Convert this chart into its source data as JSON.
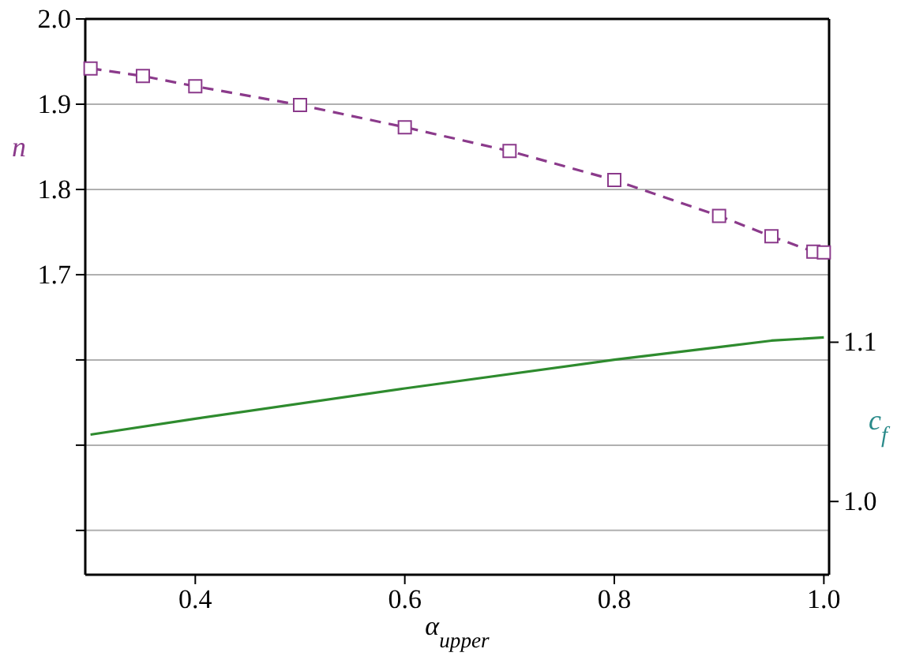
{
  "chart_data": {
    "type": "line",
    "xlabel": "α$_{upper}$",
    "ylabel": "n",
    "y2label": "c$_{f}$",
    "xlim": [
      0.295,
      1.005
    ],
    "xticks": [
      0.4,
      0.6,
      0.8,
      {
        "value": 1,
        "label": "1.0"
      }
    ],
    "ylim": [
      1.348,
      2.0
    ],
    "yticks": [
      {
        "value": 1.4,
        "label": null
      },
      {
        "value": 1.5,
        "label": null
      },
      {
        "value": 1.6,
        "label": null
      },
      1.7,
      1.8,
      1.9,
      {
        "value": 2,
        "label": "2.0"
      }
    ],
    "y2lim": [
      0.954,
      1.303
    ],
    "y2ticks": [
      {
        "value": 1,
        "label": "1.0"
      },
      1.1
    ],
    "grid": "y",
    "series": [
      {
        "color": "#8b3a8b",
        "marker": "square",
        "line_style": "dashed",
        "x": [
          0.3,
          0.35,
          0.4,
          0.5,
          0.6,
          0.7,
          0.8,
          0.9,
          0.95,
          0.99,
          1.0
        ],
        "values": [
          1.942,
          1.933,
          1.921,
          1.899,
          1.873,
          1.845,
          1.811,
          1.769,
          1.745,
          1.727,
          1.726
        ]
      },
      {
        "color": "#2e8b2e",
        "axis": "y2",
        "marker": "none",
        "line_style": "solid",
        "x": [
          0.3,
          0.4,
          0.6,
          0.8,
          0.9,
          0.95,
          1.0
        ],
        "values": [
          1.042,
          1.052,
          1.071,
          1.089,
          1.097,
          1.101,
          1.103
        ]
      }
    ]
  }
}
